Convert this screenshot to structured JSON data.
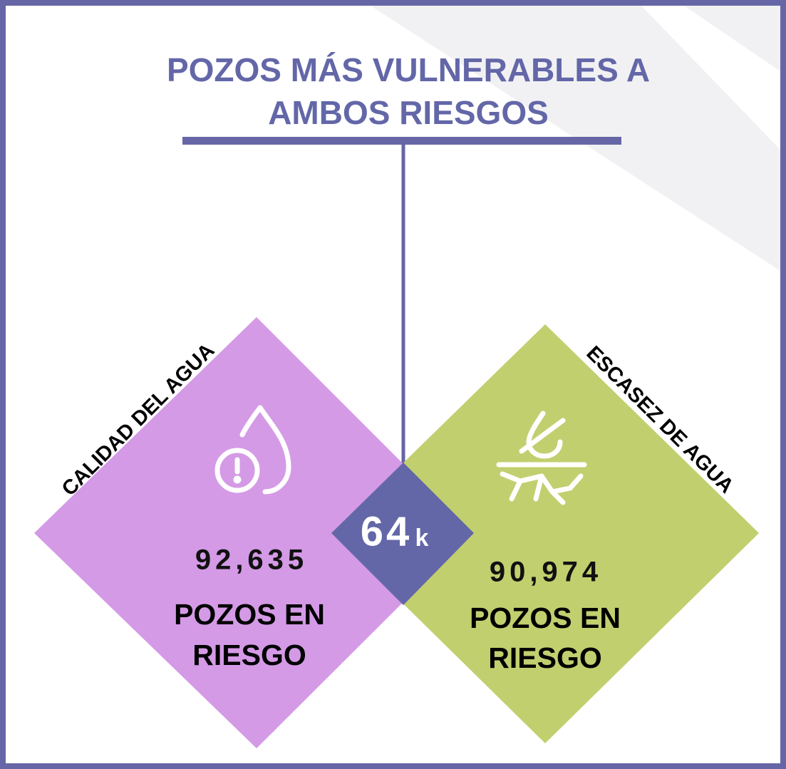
{
  "title": {
    "lines": [
      "POZOS MÁS VULNERABLES A",
      "AMBOS RIESGOS"
    ]
  },
  "left": {
    "label": "CALIDAD DEL AGUA",
    "count": "92,635",
    "text": [
      "POZOS EN",
      "RIESGO"
    ]
  },
  "right": {
    "label": "ESCASEZ DE AGUA",
    "count": "90,974",
    "text": [
      "POZOS EN",
      "RIESGO"
    ]
  },
  "overlap": {
    "number": "64",
    "unit": "k"
  }
}
